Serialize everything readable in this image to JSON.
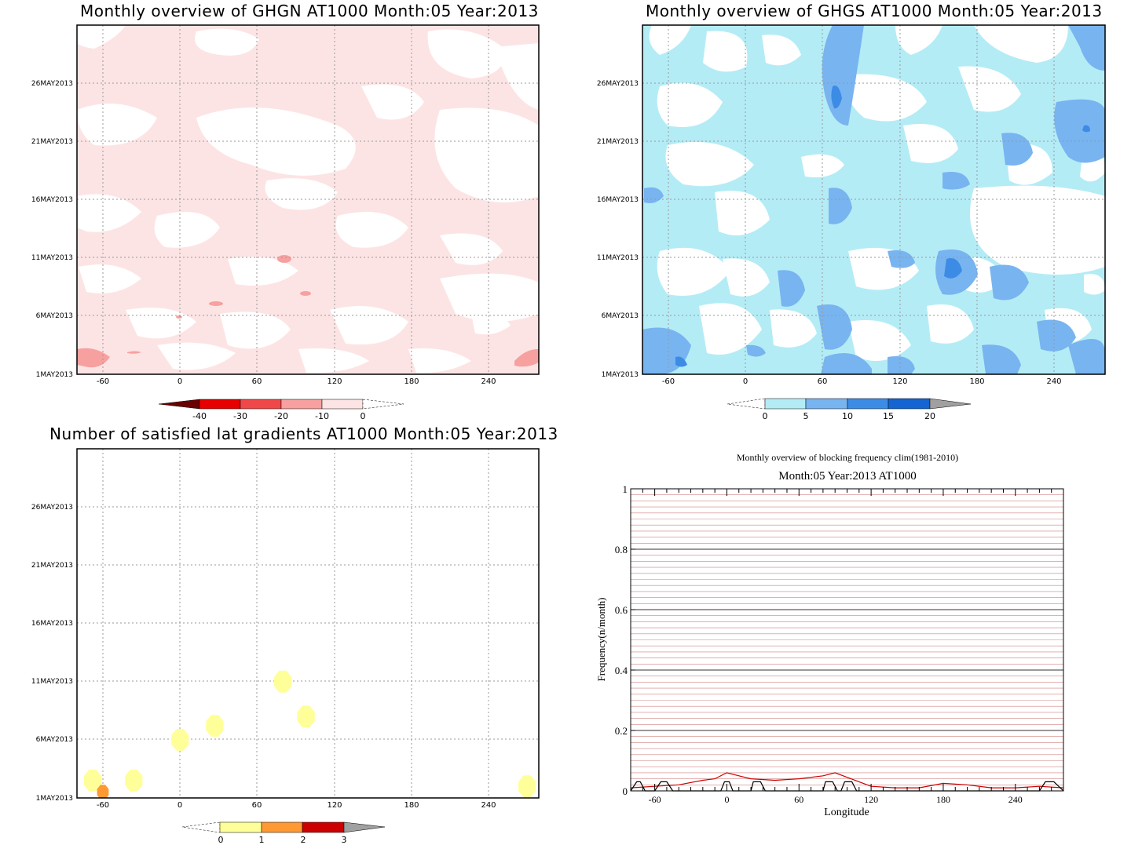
{
  "panels": {
    "ghgn": {
      "title": "Monthly overview of GHGN AT1000 Month:05 Year:2013",
      "colorbar_labels": [
        "-40",
        "-30",
        "-20",
        "-10",
        "0"
      ],
      "colorbar_colors": [
        "#6b0000",
        "#e60000",
        "#f04848",
        "#f7a0a0",
        "#fde4e4"
      ]
    },
    "ghgs": {
      "title": "Monthly overview of GHGS AT1000 Month:05 Year:2013",
      "colorbar_labels": [
        "0",
        "5",
        "10",
        "15",
        "20"
      ],
      "colorbar_colors": [
        "#b4ecf6",
        "#78b4f0",
        "#3c8ce6",
        "#1464d2",
        "#a0a0a0"
      ]
    },
    "gradients": {
      "title": "Number of satisfied lat gradients AT1000 Month:05 Year:2013",
      "colorbar_labels": [
        "0",
        "1",
        "2",
        "3"
      ],
      "colorbar_colors": [
        "#ffff99",
        "#ff9933",
        "#cc0000",
        "#a0a0a0"
      ]
    },
    "blocking": {
      "title_line1": "Monthly overview of blocking frequency clim(1981-2010)",
      "title_line2": "Month:05 Year:2013  AT1000",
      "xlabel": "Longitude",
      "ylabel": "Frequency(n/month)"
    }
  },
  "map_axes": {
    "y_ticks": [
      "26MAY2013",
      "21MAY2013",
      "16MAY2013",
      "11MAY2013",
      "6MAY2013",
      "1MAY2013"
    ],
    "x_ticks": [
      "-60",
      "0",
      "60",
      "120",
      "180",
      "240"
    ]
  },
  "chart_data": [
    {
      "type": "heatmap",
      "title": "Monthly overview of GHGN AT1000 Month:05 Year:2013",
      "x_range": [
        -80,
        280
      ],
      "y_range": [
        "1MAY2013",
        "31MAY2013"
      ],
      "xticks": [
        -60,
        0,
        60,
        120,
        180,
        240
      ],
      "yticks": [
        "1MAY2013",
        "6MAY2013",
        "11MAY2013",
        "16MAY2013",
        "21MAY2013",
        "26MAY2013"
      ],
      "levels": [
        -40,
        -30,
        -20,
        -10,
        0
      ],
      "dominant_level": "-10 to 0",
      "grid": true
    },
    {
      "type": "heatmap",
      "title": "Monthly overview of GHGS AT1000 Month:05 Year:2013",
      "x_range": [
        -80,
        280
      ],
      "y_range": [
        "1MAY2013",
        "31MAY2013"
      ],
      "xticks": [
        -60,
        0,
        60,
        120,
        180,
        240
      ],
      "levels": [
        0,
        5,
        10,
        15,
        20
      ],
      "dominant_level": "0 to 5",
      "grid": true
    },
    {
      "type": "heatmap",
      "title": "Number of satisfied lat gradients AT1000 Month:05 Year:2013",
      "x_range": [
        -80,
        280
      ],
      "xticks": [
        -60,
        0,
        60,
        120,
        180,
        240
      ],
      "levels": [
        0,
        1,
        2,
        3
      ],
      "blobs": [
        {
          "lon": -68,
          "day": 2.5,
          "value": 1
        },
        {
          "lon": -60,
          "day": 1.5,
          "value": 2
        },
        {
          "lon": -36,
          "day": 2.5,
          "value": 1
        },
        {
          "lon": 0,
          "day": 6.0,
          "value": 1
        },
        {
          "lon": 27,
          "day": 7.2,
          "value": 1
        },
        {
          "lon": 80,
          "day": 11.0,
          "value": 1
        },
        {
          "lon": 98,
          "day": 8.0,
          "value": 1
        },
        {
          "lon": 270,
          "day": 2.0,
          "value": 1
        }
      ],
      "grid": true
    },
    {
      "type": "line",
      "title": "Monthly overview of blocking frequency clim(1981-2010)",
      "subtitle": "Month:05 Year:2013  AT1000",
      "xlabel": "Longitude",
      "ylabel": "Frequency(n/month)",
      "xlim": [
        -80,
        280
      ],
      "ylim": [
        0,
        1
      ],
      "xticks": [
        -60,
        0,
        60,
        120,
        180,
        240
      ],
      "yticks": [
        0,
        0.2,
        0.4,
        0.6,
        0.8,
        1
      ],
      "series": [
        {
          "color": "#cc0000",
          "x": [
            -80,
            -60,
            -40,
            -20,
            -10,
            0,
            10,
            20,
            40,
            60,
            80,
            90,
            100,
            110,
            120,
            140,
            160,
            180,
            200,
            220,
            240,
            260,
            280
          ],
          "values": [
            0.01,
            0.015,
            0.02,
            0.035,
            0.04,
            0.06,
            0.05,
            0.04,
            0.035,
            0.04,
            0.05,
            0.06,
            0.045,
            0.03,
            0.015,
            0.01,
            0.01,
            0.025,
            0.02,
            0.01,
            0.01,
            0.015,
            0.01
          ]
        },
        {
          "color": "#000000",
          "x": [
            -80,
            -75,
            -72,
            -68,
            -60,
            -55,
            -50,
            -45,
            -40,
            -5,
            -2,
            2,
            5,
            20,
            22,
            28,
            32,
            80,
            82,
            88,
            92,
            95,
            98,
            104,
            108,
            260,
            265,
            272,
            280
          ],
          "values": [
            0,
            0.03,
            0.03,
            0,
            0,
            0.03,
            0.03,
            0,
            0,
            0,
            0.03,
            0.03,
            0,
            0,
            0.03,
            0.03,
            0,
            0,
            0.03,
            0.03,
            0,
            0,
            0.03,
            0.03,
            0,
            0,
            0.03,
            0.03,
            0
          ]
        }
      ],
      "grid": true
    }
  ]
}
